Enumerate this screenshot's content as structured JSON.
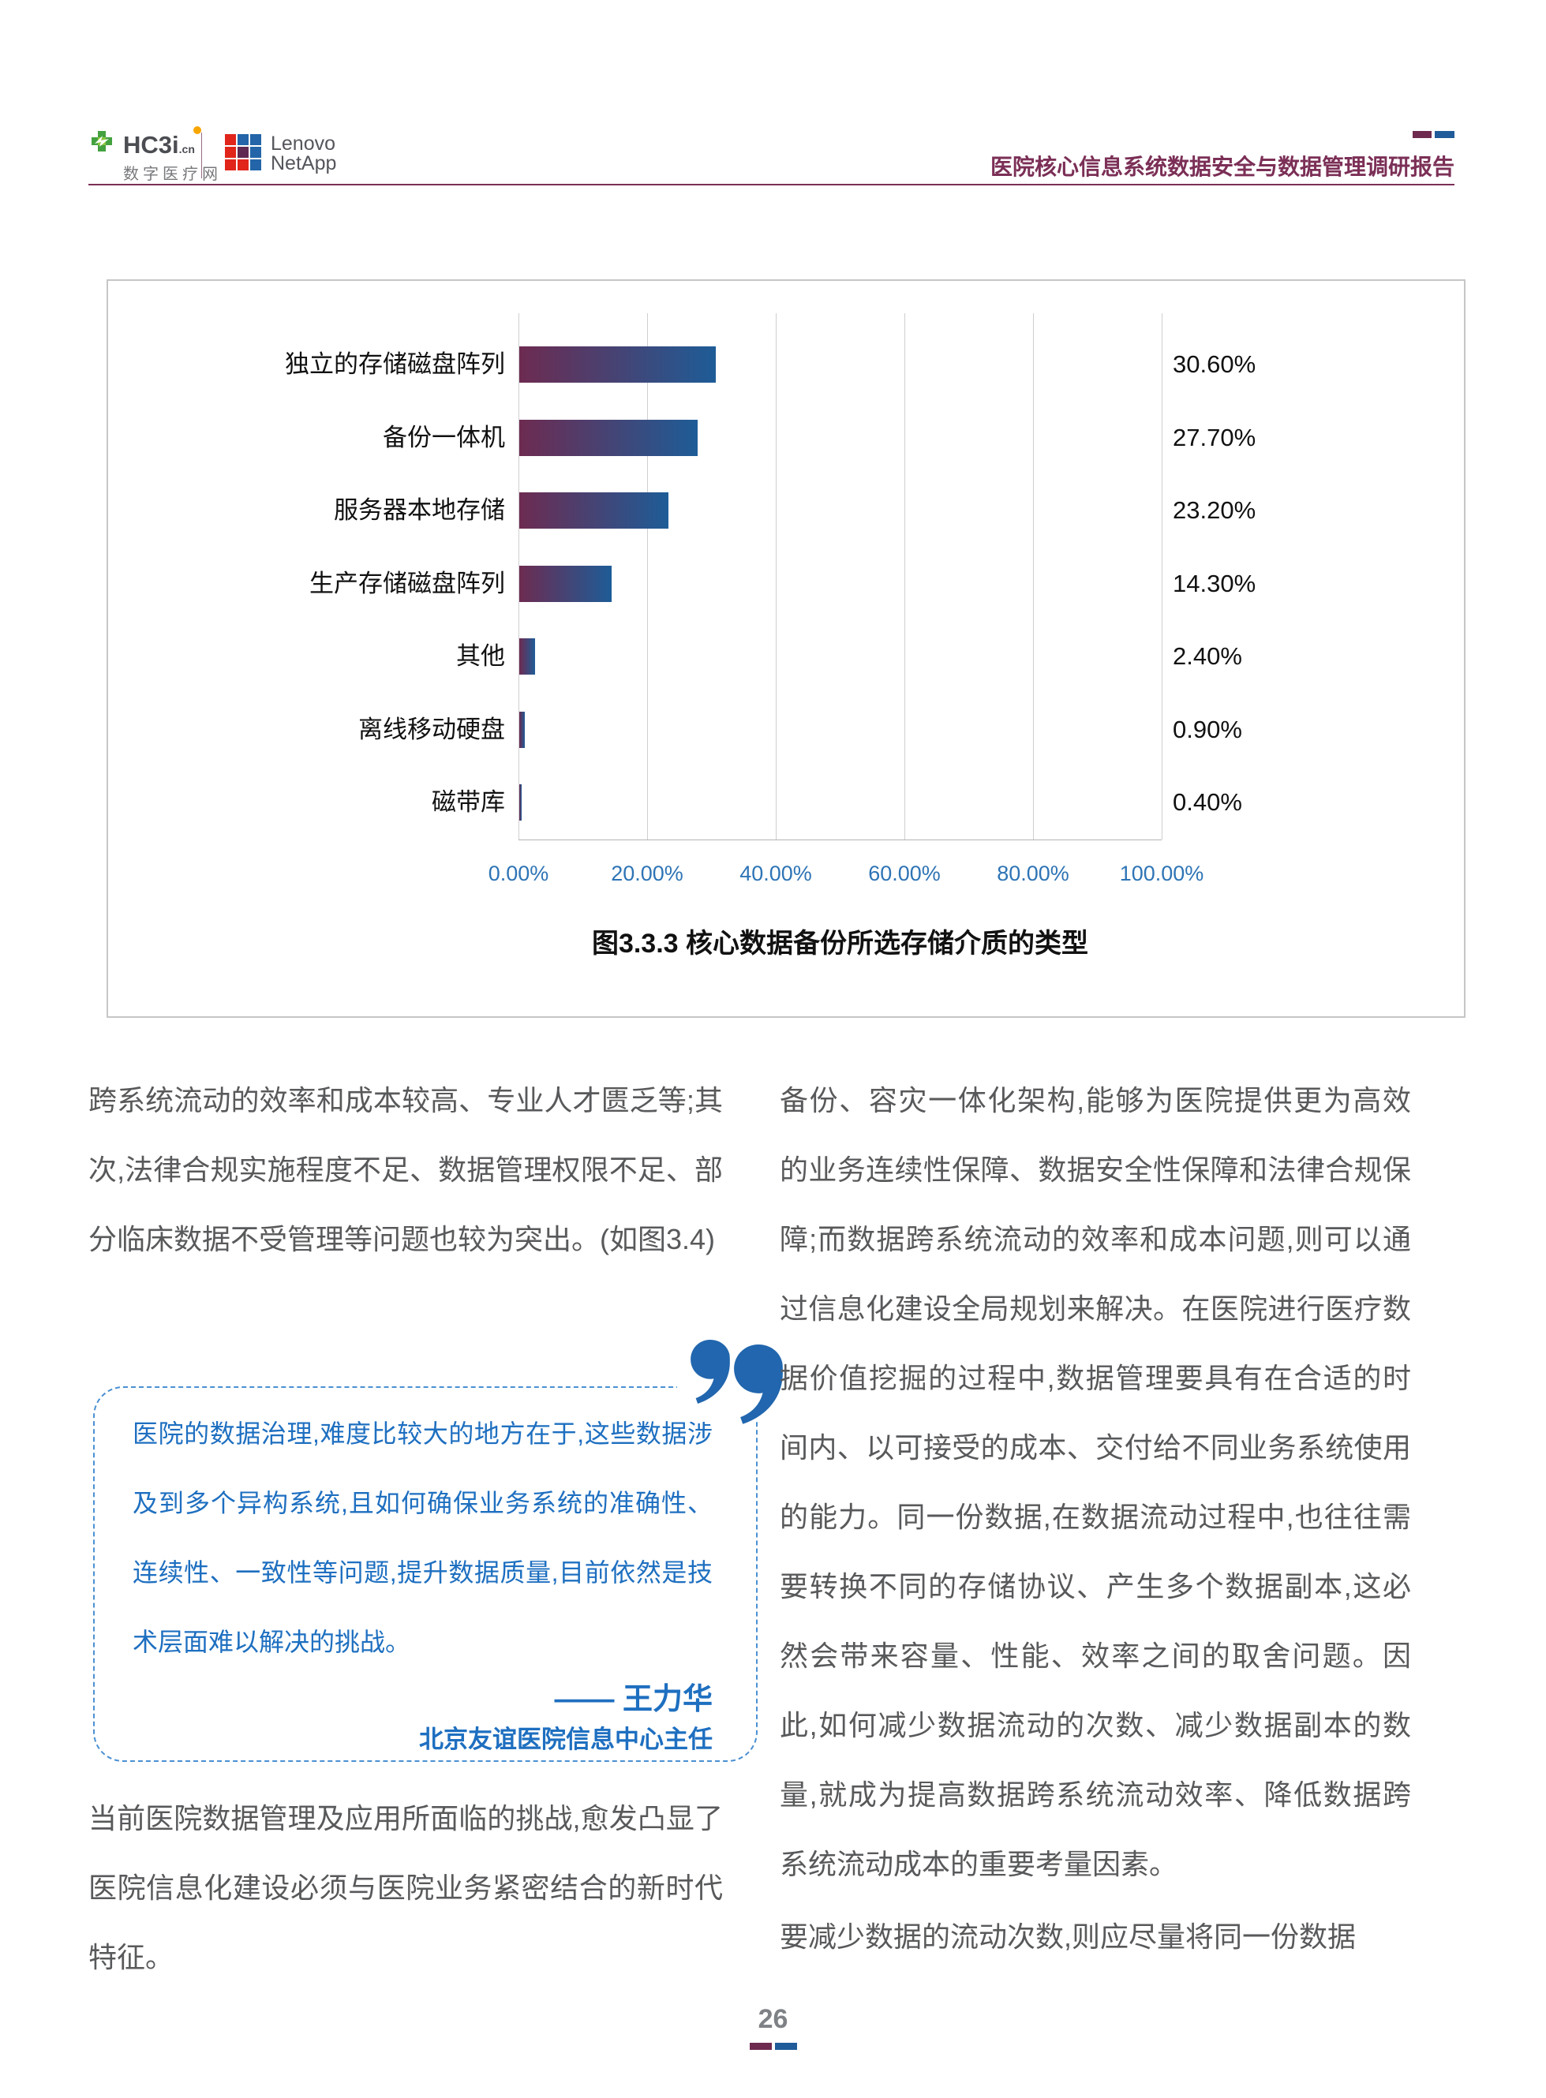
{
  "header": {
    "hc3i_logo": {
      "name": "HC3i",
      "tld": ".cn",
      "subtitle": "数字医疗网"
    },
    "lenovo_logo": {
      "line1": "Lenovo",
      "line2": "NetApp"
    },
    "report_title": "医院核心信息系统数据安全与数据管理调研报告"
  },
  "chart_data": {
    "type": "bar",
    "orientation": "horizontal",
    "title": "图3.3.3 核心数据备份所选存储介质的类型",
    "categories": [
      "独立的存储磁盘阵列",
      "备份一体机",
      "服务器本地存储",
      "生产存储磁盘阵列",
      "其他",
      "离线移动硬盘",
      "磁带库"
    ],
    "values": [
      30.6,
      27.7,
      23.2,
      14.3,
      2.4,
      0.9,
      0.4
    ],
    "value_labels": [
      "30.60%",
      "27.70%",
      "23.20%",
      "14.30%",
      "2.40%",
      "0.90%",
      "0.40%"
    ],
    "x_ticks": [
      "0.00%",
      "20.00%",
      "40.00%",
      "60.00%",
      "80.00%",
      "100.00%"
    ],
    "xlim": [
      0,
      100
    ],
    "grid": true,
    "legend": "none",
    "bar_gradient": [
      "#6d2b51",
      "#1e5c97"
    ]
  },
  "left_column": {
    "para1": "跨系统流动的效率和成本较高、专业人才匮乏等;其次,法律合规实施程度不足、数据管理权限不足、部分临床数据不受管理等问题也较为突出。(如图3.4)",
    "quote": {
      "text": "医院的数据治理,难度比较大的地方在于,这些数据涉及到多个异构系统,且如何确保业务系统的准确性、连续性、一致性等问题,提升数据质量,目前依然是技术层面难以解决的挑战。",
      "author": "—— 王力华",
      "author_title": "北京友谊医院信息中心主任"
    },
    "para2": "当前医院数据管理及应用所面临的挑战,愈发凸显了医院信息化建设必须与医院业务紧密结合的新时代特征。"
  },
  "right_column": {
    "para1": "备份、容灾一体化架构,能够为医院提供更为高效的业务连续性保障、数据安全性保障和法律合规保障;而数据跨系统流动的效率和成本问题,则可以通过信息化建设全局规划来解决。在医院进行医疗数据价值挖掘的过程中,数据管理要具有在合适的时间内、以可接受的成本、交付给不同业务系统使用的能力。同一份数据,在数据流动过程中,也往往需要转换不同的存储协议、产生多个数据副本,这必然会带来容量、性能、效率之间的取舍问题。因此,如何减少数据流动的次数、减少数据副本的数量,就成为提高数据跨系统流动效率、降低数据跨系统流动成本的重要考量因素。",
    "para2": "要减少数据的流动次数,则应尽量将同一份数据"
  },
  "footer": {
    "page_number": "26"
  },
  "colors": {
    "brand_maroon": "#7b2f56",
    "brand_blue": "#1f5c99",
    "quote_blue": "#1e6fc0",
    "axis_tick_blue": "#2e74b5",
    "body_gray": "#58595b",
    "bar_gradient_start": "#6d2b51",
    "bar_gradient_end": "#1e5c97",
    "lenovo_red": "#e1251b",
    "hc3i_green": "#44a13f",
    "hc3i_orange": "#f7a600"
  }
}
